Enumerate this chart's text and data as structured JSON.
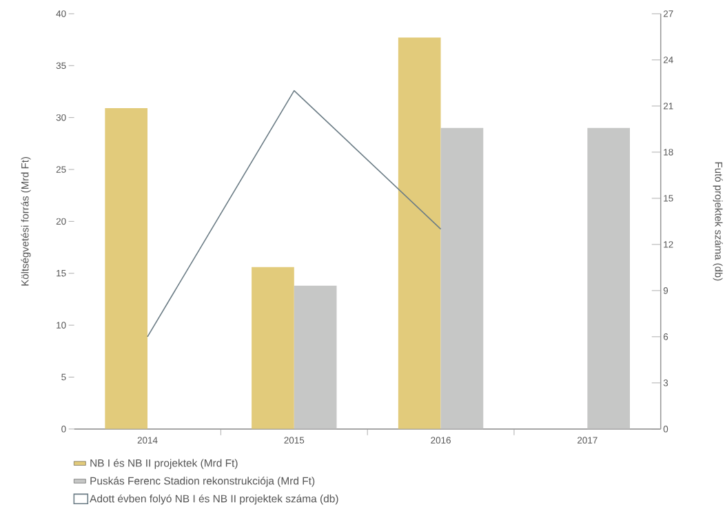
{
  "chart_data": {
    "type": "bar",
    "categories": [
      "2014",
      "2015",
      "2016",
      "2017"
    ],
    "ylabel": "Költségvetési forrás (Mrd Ft)",
    "y2label": "Futó projektek száma (db)",
    "series": [
      {
        "name": "NB I és NB II projektek (Mrd Ft)",
        "color": "#e2cb7b",
        "values": [
          30.9,
          15.6,
          37.7,
          null
        ]
      },
      {
        "name": "Puskás Ferenc Stadion rekonstrukciója (Mrd Ft)",
        "color": "#c6c7c6",
        "values": [
          null,
          13.8,
          29.0,
          29.0
        ]
      },
      {
        "name": "Adott évben folyó NB I és NB II projektek száma (db)",
        "type": "line",
        "axis": "y2",
        "color": "#6b7c85",
        "values": [
          6,
          22,
          13,
          null
        ]
      }
    ],
    "ylim": [
      0,
      40
    ],
    "yticks": [
      0,
      5,
      10,
      15,
      20,
      25,
      30,
      35,
      40
    ],
    "y2lim": [
      0,
      27
    ],
    "y2ticks": [
      0,
      3,
      6,
      9,
      12,
      15,
      18,
      21,
      24,
      27
    ],
    "legend": "bottom",
    "marker": "none",
    "line_style": "solid"
  }
}
